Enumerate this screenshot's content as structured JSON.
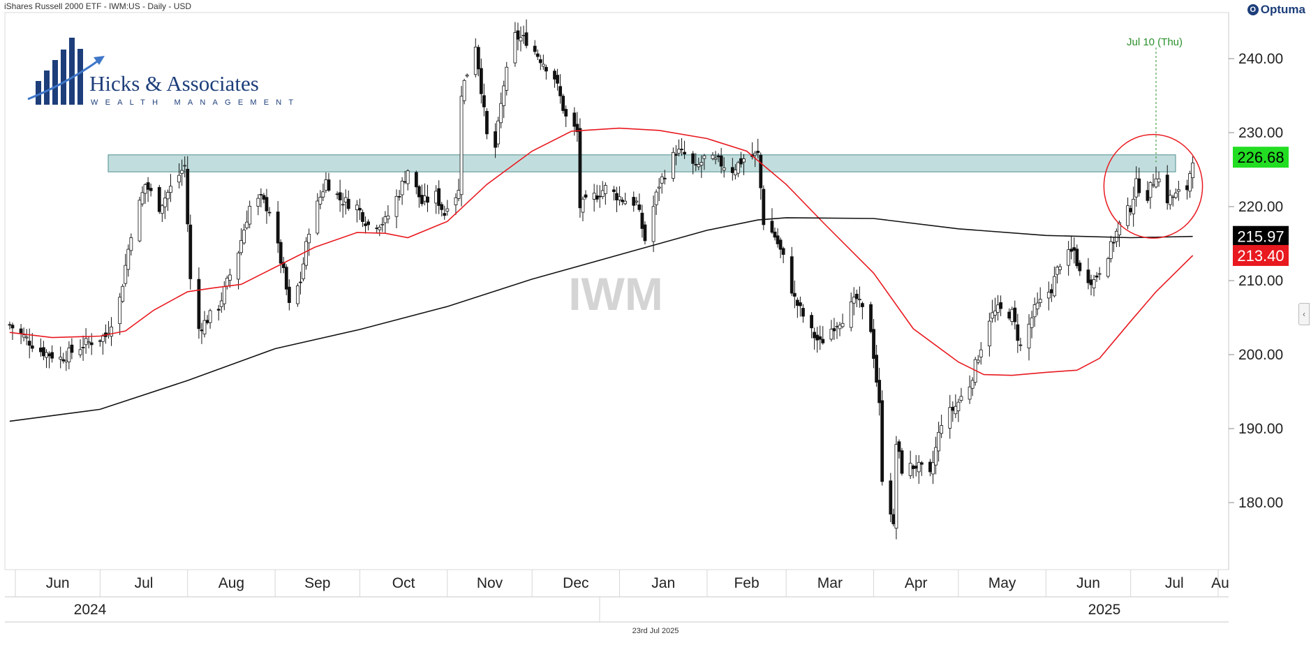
{
  "header": {
    "title": "iShares Russell 2000 ETF - IWM:US - Daily - USD"
  },
  "brand": {
    "optuma_label": "Optuma",
    "optuma_mark": "O"
  },
  "logo": {
    "name": "Hicks & Associates",
    "tagline": "WEALTH MANAGEMENT"
  },
  "footer": {
    "date": "23rd Jul 2025"
  },
  "colors": {
    "ma_short": "#e8191f",
    "ma_long": "#111111",
    "zone": "#8fc1c1",
    "annotation": "#2a8f2a",
    "last_price_bg": "#22dd22",
    "ma_long_bg": "#000000",
    "ma_short_bg": "#e8191f",
    "brand_navy": "#1d3e7a"
  },
  "icons": {
    "collapse_panel": "chevron-left-icon"
  },
  "chart_data": {
    "type": "candlestick",
    "title": "iShares Russell 2000 ETF - IWM:US - Daily - USD",
    "watermark": "IWM",
    "ylim": [
      171.5,
      246
    ],
    "y_ticks": [
      180,
      190,
      200,
      210,
      220,
      230,
      240
    ],
    "y_tick_labels": [
      "180.00",
      "190.00",
      "200.00",
      "210.00",
      "220.00",
      "230.00",
      "240.00"
    ],
    "x_months": [
      "Jun",
      "Jul",
      "Aug",
      "Sep",
      "Oct",
      "Nov",
      "Dec",
      "Jan",
      "Feb",
      "Mar",
      "Apr",
      "May",
      "Jun",
      "Jul",
      "Au"
    ],
    "x_years": [
      "2024",
      "2025"
    ],
    "price_labels": [
      {
        "label": "226.68",
        "value": 226.68,
        "series": "last close"
      },
      {
        "label": "215.97",
        "value": 215.97,
        "series": "long moving average"
      },
      {
        "label": "213.40",
        "value": 213.4,
        "series": "short moving average"
      }
    ],
    "resistance_zone": {
      "low": 224.7,
      "high": 227.0
    },
    "annotation": {
      "label": "Jul 10 (Thu)",
      "date": "2025-07-10",
      "value": 226.0
    },
    "highlight_circle": {
      "start": "2025-06-25",
      "end": "2025-07-23",
      "low": 216.5,
      "high": 229.0
    },
    "anchors": [
      [
        "2024-05-30",
        204.0
      ],
      [
        "2024-06-10",
        200.5
      ],
      [
        "2024-06-17",
        199.5
      ],
      [
        "2024-06-26",
        201.5
      ],
      [
        "2024-07-03",
        202.5
      ],
      [
        "2024-07-08",
        207.5
      ],
      [
        "2024-07-12",
        216.5
      ],
      [
        "2024-07-17",
        223.0
      ],
      [
        "2024-07-22",
        220.0
      ],
      [
        "2024-07-26",
        222.5
      ],
      [
        "2024-07-31",
        225.5
      ],
      [
        "2024-08-02",
        210.0
      ],
      [
        "2024-08-05",
        203.5
      ],
      [
        "2024-08-12",
        206.5
      ],
      [
        "2024-08-19",
        214.0
      ],
      [
        "2024-08-23",
        220.0
      ],
      [
        "2024-08-27",
        221.0
      ],
      [
        "2024-08-30",
        219.5
      ],
      [
        "2024-09-04",
        211.0
      ],
      [
        "2024-09-06",
        206.5
      ],
      [
        "2024-09-10",
        210.0
      ],
      [
        "2024-09-13",
        217.0
      ],
      [
        "2024-09-19",
        223.5
      ],
      [
        "2024-09-24",
        221.0
      ],
      [
        "2024-09-30",
        220.0
      ],
      [
        "2024-10-04",
        217.5
      ],
      [
        "2024-10-10",
        218.0
      ],
      [
        "2024-10-15",
        222.0
      ],
      [
        "2024-10-18",
        225.0
      ],
      [
        "2024-10-23",
        220.5
      ],
      [
        "2024-10-28",
        221.5
      ],
      [
        "2024-10-31",
        219.0
      ],
      [
        "2024-11-01",
        220.5
      ],
      [
        "2024-11-05",
        222.0
      ],
      [
        "2024-11-06",
        235.5
      ],
      [
        "2024-11-11",
        242.0
      ],
      [
        "2024-11-13",
        236.0
      ],
      [
        "2024-11-15",
        229.5
      ],
      [
        "2024-11-18",
        228.0
      ],
      [
        "2024-11-21",
        236.5
      ],
      [
        "2024-11-25",
        243.0
      ],
      [
        "2024-11-29",
        242.5
      ],
      [
        "2024-12-04",
        240.0
      ],
      [
        "2024-12-09",
        237.5
      ],
      [
        "2024-12-13",
        232.0
      ],
      [
        "2024-12-17",
        230.0
      ],
      [
        "2024-12-18",
        220.0
      ],
      [
        "2024-12-20",
        220.5
      ],
      [
        "2024-12-27",
        222.5
      ],
      [
        "2025-01-02",
        221.0
      ],
      [
        "2025-01-07",
        220.5
      ],
      [
        "2025-01-10",
        215.5
      ],
      [
        "2025-01-15",
        223.0
      ],
      [
        "2025-01-21",
        227.5
      ],
      [
        "2025-01-24",
        227.0
      ],
      [
        "2025-01-28",
        225.0
      ],
      [
        "2025-01-31",
        226.5
      ],
      [
        "2025-02-05",
        226.0
      ],
      [
        "2025-02-10",
        225.0
      ],
      [
        "2025-02-14",
        226.5
      ],
      [
        "2025-02-19",
        227.0
      ],
      [
        "2025-02-21",
        218.0
      ],
      [
        "2025-02-25",
        216.0
      ],
      [
        "2025-02-28",
        213.0
      ],
      [
        "2025-03-04",
        207.5
      ],
      [
        "2025-03-10",
        203.0
      ],
      [
        "2025-03-13",
        201.5
      ],
      [
        "2025-03-18",
        204.0
      ],
      [
        "2025-03-21",
        205.0
      ],
      [
        "2025-03-26",
        207.5
      ],
      [
        "2025-03-31",
        203.5
      ],
      [
        "2025-04-03",
        193.0
      ],
      [
        "2025-04-04",
        183.5
      ],
      [
        "2025-04-07",
        179.0
      ],
      [
        "2025-04-08",
        176.5
      ],
      [
        "2025-04-09",
        188.0
      ],
      [
        "2025-04-11",
        184.5
      ],
      [
        "2025-04-16",
        185.0
      ],
      [
        "2025-04-21",
        183.5
      ],
      [
        "2025-04-25",
        191.0
      ],
      [
        "2025-04-30",
        193.0
      ],
      [
        "2025-05-05",
        196.0
      ],
      [
        "2025-05-12",
        205.0
      ],
      [
        "2025-05-15",
        206.0
      ],
      [
        "2025-05-20",
        205.5
      ],
      [
        "2025-05-23",
        201.0
      ],
      [
        "2025-05-28",
        206.0
      ],
      [
        "2025-06-03",
        209.0
      ],
      [
        "2025-06-06",
        212.5
      ],
      [
        "2025-06-11",
        214.0
      ],
      [
        "2025-06-13",
        211.0
      ],
      [
        "2025-06-18",
        210.0
      ],
      [
        "2025-06-24",
        214.5
      ],
      [
        "2025-06-27",
        217.5
      ],
      [
        "2025-07-01",
        220.0
      ],
      [
        "2025-07-03",
        223.0
      ],
      [
        "2025-07-07",
        221.5
      ],
      [
        "2025-07-10",
        224.5
      ],
      [
        "2025-07-14",
        221.0
      ],
      [
        "2025-07-17",
        221.5
      ],
      [
        "2025-07-21",
        222.5
      ],
      [
        "2025-07-23",
        226.68
      ]
    ],
    "series": [
      {
        "name": "short moving average",
        "color": "#e8191f",
        "points": [
          [
            "2024-05-30",
            203.0
          ],
          [
            "2024-06-14",
            202.3
          ],
          [
            "2024-07-01",
            202.5
          ],
          [
            "2024-07-10",
            203.2
          ],
          [
            "2024-07-20",
            206.0
          ],
          [
            "2024-08-01",
            208.5
          ],
          [
            "2024-08-10",
            209.0
          ],
          [
            "2024-08-20",
            209.5
          ],
          [
            "2024-09-01",
            211.8
          ],
          [
            "2024-09-15",
            214.5
          ],
          [
            "2024-09-30",
            216.5
          ],
          [
            "2024-10-10",
            216.4
          ],
          [
            "2024-10-18",
            215.8
          ],
          [
            "2024-11-01",
            218.0
          ],
          [
            "2024-11-15",
            223.0
          ],
          [
            "2024-12-01",
            227.5
          ],
          [
            "2024-12-15",
            230.2
          ],
          [
            "2025-01-01",
            230.6
          ],
          [
            "2025-01-15",
            230.3
          ],
          [
            "2025-02-01",
            229.2
          ],
          [
            "2025-02-15",
            227.5
          ],
          [
            "2025-03-01",
            223.0
          ],
          [
            "2025-03-15",
            217.5
          ],
          [
            "2025-04-01",
            211.0
          ],
          [
            "2025-04-15",
            203.5
          ],
          [
            "2025-05-01",
            199.0
          ],
          [
            "2025-05-10",
            197.3
          ],
          [
            "2025-05-20",
            197.2
          ],
          [
            "2025-06-01",
            197.6
          ],
          [
            "2025-06-12",
            197.9
          ],
          [
            "2025-06-20",
            199.5
          ],
          [
            "2025-07-01",
            204.5
          ],
          [
            "2025-07-10",
            208.5
          ],
          [
            "2025-07-23",
            213.4
          ]
        ]
      },
      {
        "name": "long moving average",
        "color": "#111111",
        "points": [
          [
            "2024-05-30",
            191.0
          ],
          [
            "2024-07-01",
            192.6
          ],
          [
            "2024-08-01",
            196.5
          ],
          [
            "2024-09-01",
            200.8
          ],
          [
            "2024-10-01",
            203.4
          ],
          [
            "2024-11-01",
            206.5
          ],
          [
            "2024-12-01",
            210.2
          ],
          [
            "2025-01-01",
            213.5
          ],
          [
            "2025-02-01",
            216.8
          ],
          [
            "2025-02-19",
            218.2
          ],
          [
            "2025-03-01",
            218.5
          ],
          [
            "2025-04-01",
            218.4
          ],
          [
            "2025-05-01",
            217.0
          ],
          [
            "2025-06-01",
            216.1
          ],
          [
            "2025-07-01",
            215.8
          ],
          [
            "2025-07-23",
            215.97
          ]
        ]
      }
    ]
  }
}
